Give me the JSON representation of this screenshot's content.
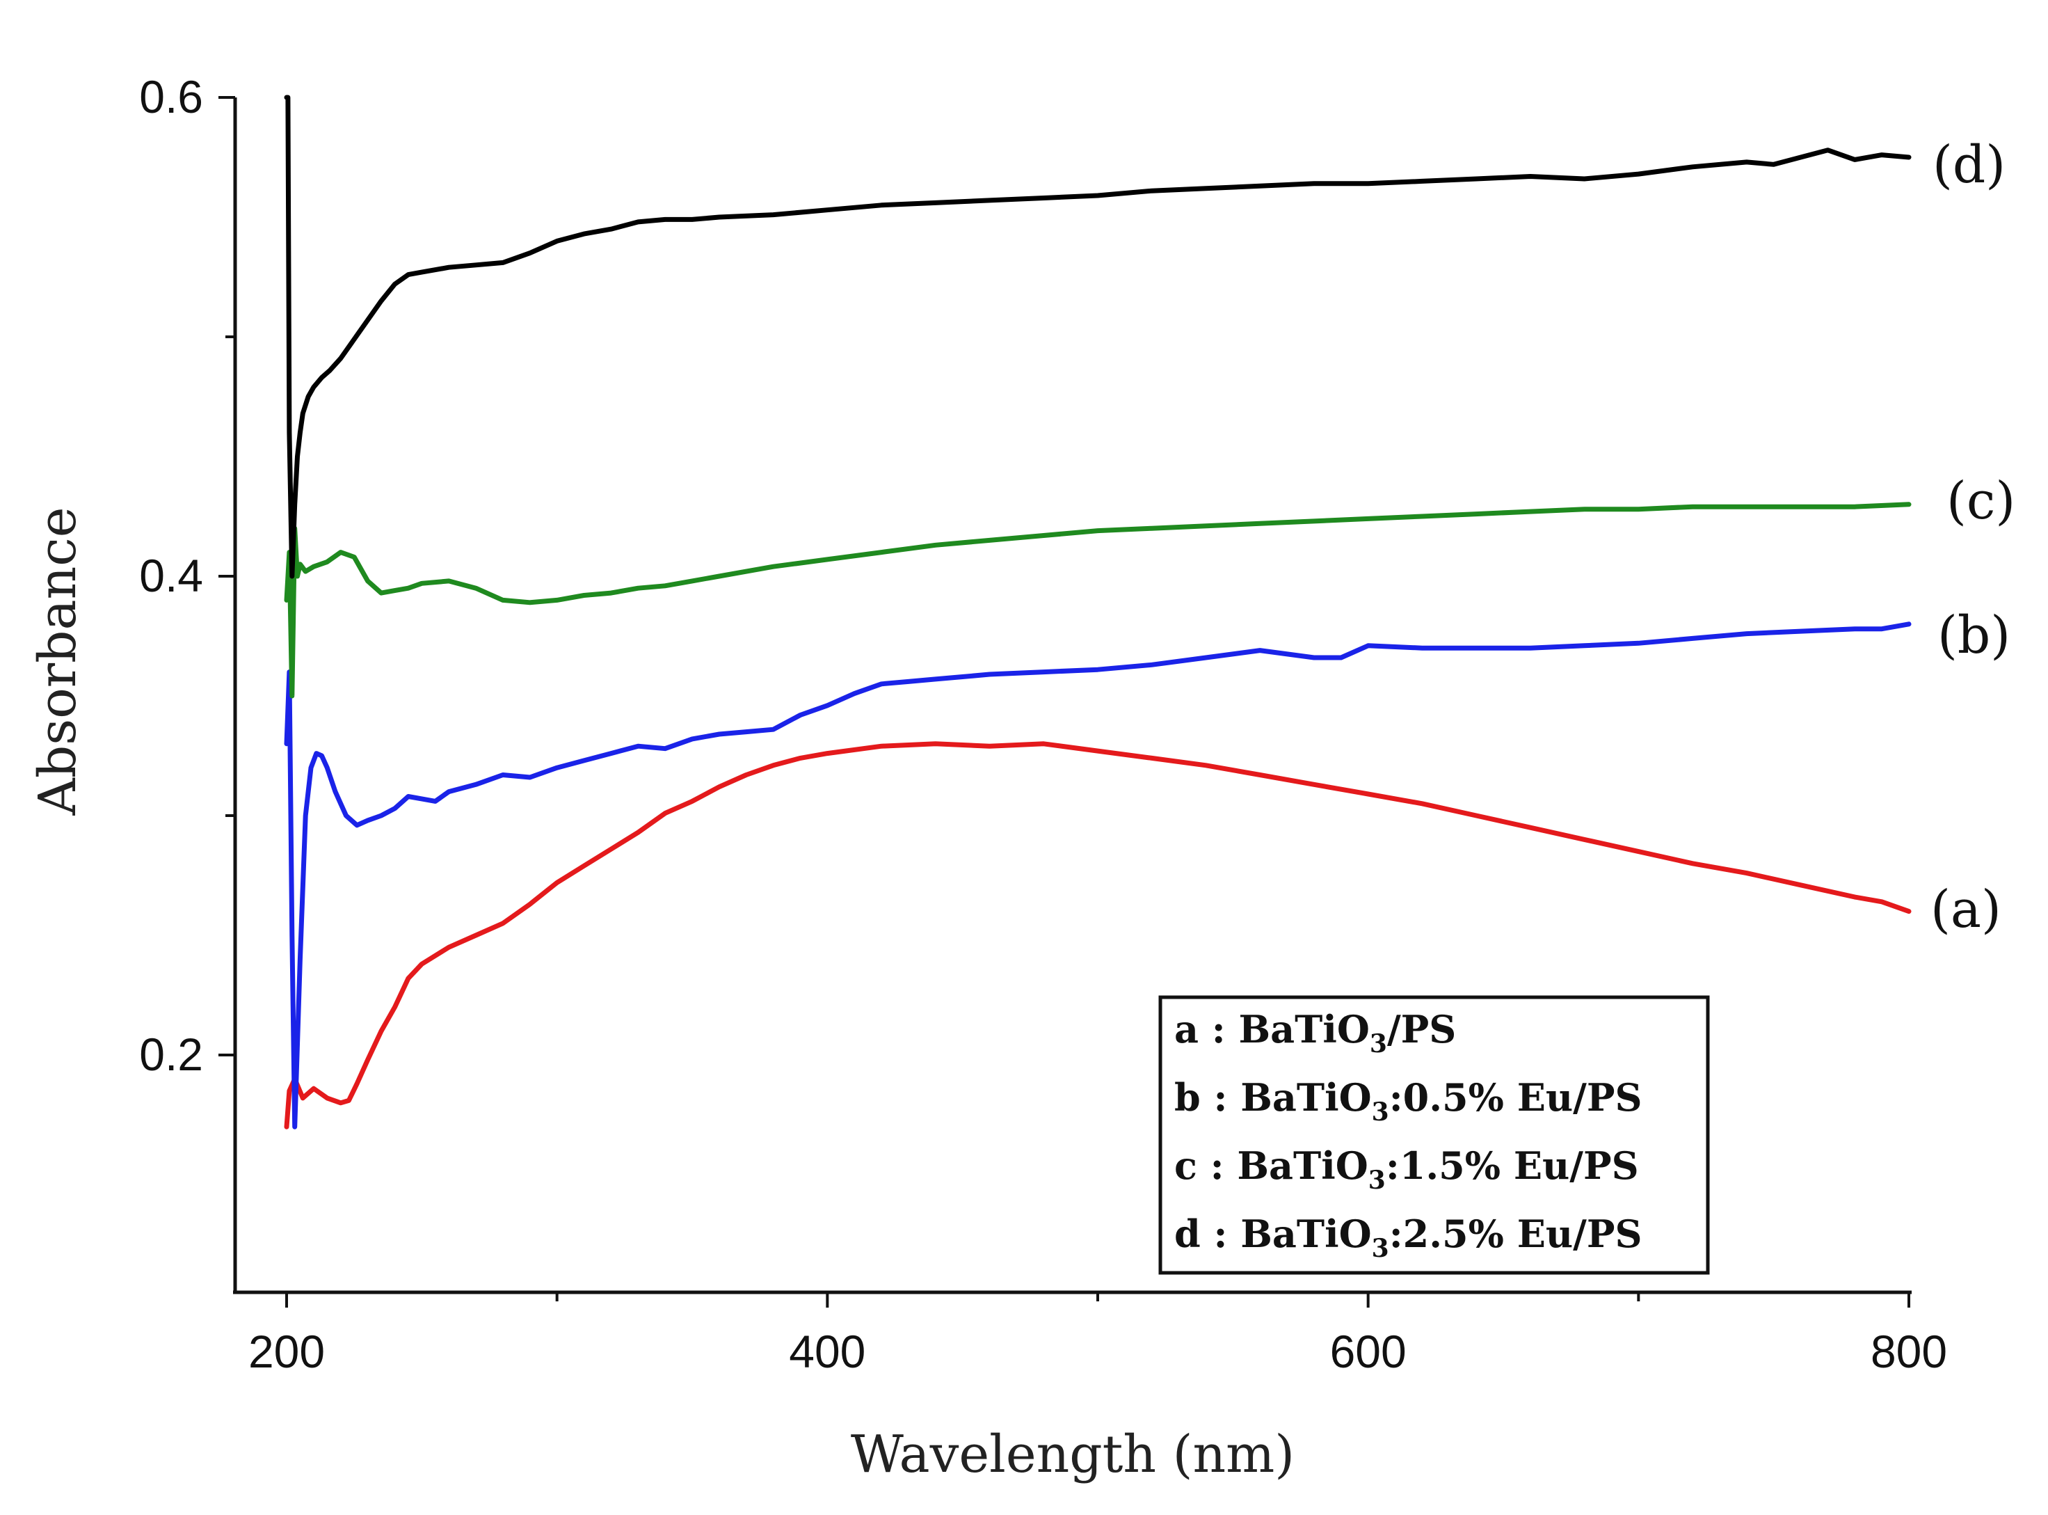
{
  "chart_data": {
    "type": "line",
    "title": "",
    "xlabel": "Wavelength (nm)",
    "ylabel": "Absorbance",
    "xlim": [
      190,
      800
    ],
    "ylim": [
      0.1,
      0.6
    ],
    "xticks": [
      200,
      400,
      600,
      800
    ],
    "xtick_labels": [
      "200",
      "400",
      "600",
      "800"
    ],
    "yticks": [
      0.2,
      0.4,
      0.6
    ],
    "ytick_labels": [
      "0.2",
      "0.4",
      "0.6"
    ],
    "grid": false,
    "legend_position": "bottom-right",
    "series": [
      {
        "name": "a",
        "tag": "(a)",
        "legend_prefix": "a : BaTiO",
        "legend_sub": "3",
        "legend_suffix": "/PS",
        "color": "#e41a1c",
        "x": [
          200,
          201,
          203,
          206,
          210,
          215,
          220,
          223,
          226,
          230,
          235,
          240,
          245,
          250,
          260,
          270,
          280,
          290,
          300,
          310,
          320,
          330,
          340,
          350,
          360,
          370,
          380,
          390,
          400,
          420,
          440,
          460,
          480,
          500,
          520,
          540,
          560,
          580,
          600,
          620,
          640,
          660,
          680,
          700,
          720,
          740,
          760,
          780,
          790,
          800
        ],
        "y": [
          0.17,
          0.185,
          0.19,
          0.182,
          0.186,
          0.182,
          0.18,
          0.181,
          0.188,
          0.198,
          0.21,
          0.22,
          0.232,
          0.238,
          0.245,
          0.25,
          0.255,
          0.263,
          0.272,
          0.279,
          0.286,
          0.293,
          0.301,
          0.306,
          0.312,
          0.317,
          0.321,
          0.324,
          0.326,
          0.329,
          0.33,
          0.329,
          0.33,
          0.327,
          0.324,
          0.321,
          0.317,
          0.313,
          0.309,
          0.305,
          0.3,
          0.295,
          0.29,
          0.285,
          0.28,
          0.276,
          0.271,
          0.266,
          0.264,
          0.26
        ]
      },
      {
        "name": "b",
        "tag": "(b)",
        "legend_prefix": "b : BaTiO",
        "legend_sub": "3",
        "legend_suffix": ":0.5% Eu/PS",
        "color": "#1a23e8",
        "x": [
          200,
          201,
          202,
          203,
          205,
          207,
          209,
          211,
          213,
          215,
          218,
          222,
          226,
          230,
          235,
          240,
          245,
          250,
          255,
          260,
          270,
          280,
          290,
          300,
          310,
          320,
          330,
          340,
          350,
          360,
          370,
          380,
          390,
          400,
          410,
          420,
          430,
          440,
          450,
          460,
          480,
          500,
          520,
          540,
          560,
          580,
          590,
          600,
          620,
          640,
          660,
          680,
          700,
          720,
          740,
          760,
          780,
          790,
          800
        ],
        "y": [
          0.33,
          0.36,
          0.25,
          0.17,
          0.24,
          0.3,
          0.32,
          0.326,
          0.325,
          0.32,
          0.31,
          0.3,
          0.296,
          0.298,
          0.3,
          0.303,
          0.308,
          0.307,
          0.306,
          0.31,
          0.313,
          0.317,
          0.316,
          0.32,
          0.323,
          0.326,
          0.329,
          0.328,
          0.332,
          0.334,
          0.335,
          0.336,
          0.342,
          0.346,
          0.351,
          0.355,
          0.356,
          0.357,
          0.358,
          0.359,
          0.36,
          0.361,
          0.363,
          0.366,
          0.369,
          0.366,
          0.366,
          0.371,
          0.37,
          0.37,
          0.37,
          0.371,
          0.372,
          0.374,
          0.376,
          0.377,
          0.378,
          0.378,
          0.38
        ]
      },
      {
        "name": "c",
        "tag": "(c)",
        "legend_prefix": "c  : BaTiO",
        "legend_sub": "3",
        "legend_suffix": ":1.5% Eu/PS",
        "color": "#1f8a1f",
        "x": [
          200,
          201,
          202,
          203,
          204,
          205,
          207,
          210,
          215,
          220,
          225,
          230,
          235,
          240,
          245,
          250,
          260,
          270,
          280,
          290,
          300,
          310,
          320,
          330,
          340,
          350,
          360,
          380,
          400,
          420,
          440,
          460,
          480,
          500,
          520,
          540,
          560,
          580,
          600,
          620,
          640,
          660,
          680,
          700,
          720,
          740,
          760,
          780,
          800
        ],
        "y": [
          0.39,
          0.41,
          0.35,
          0.42,
          0.4,
          0.405,
          0.402,
          0.404,
          0.406,
          0.41,
          0.408,
          0.398,
          0.393,
          0.394,
          0.395,
          0.397,
          0.398,
          0.395,
          0.39,
          0.389,
          0.39,
          0.392,
          0.393,
          0.395,
          0.396,
          0.398,
          0.4,
          0.404,
          0.407,
          0.41,
          0.413,
          0.415,
          0.417,
          0.419,
          0.42,
          0.421,
          0.422,
          0.423,
          0.424,
          0.425,
          0.426,
          0.427,
          0.428,
          0.428,
          0.429,
          0.429,
          0.429,
          0.429,
          0.43
        ]
      },
      {
        "name": "d",
        "tag": "(d)",
        "legend_prefix": "d  : BaTiO",
        "legend_sub": "3",
        "legend_suffix": ":2.5% Eu/PS",
        "color": "#000000",
        "x": [
          200,
          200.5,
          201,
          202,
          203,
          204,
          205,
          206,
          208,
          210,
          213,
          216,
          220,
          225,
          230,
          235,
          240,
          245,
          250,
          260,
          270,
          280,
          290,
          300,
          310,
          320,
          330,
          340,
          350,
          360,
          380,
          400,
          420,
          440,
          460,
          480,
          500,
          520,
          540,
          560,
          580,
          600,
          620,
          640,
          660,
          680,
          700,
          720,
          740,
          750,
          760,
          770,
          780,
          790,
          800
        ],
        "y": [
          0.6,
          0.6,
          0.46,
          0.4,
          0.43,
          0.45,
          0.46,
          0.468,
          0.475,
          0.479,
          0.483,
          0.486,
          0.491,
          0.499,
          0.507,
          0.515,
          0.522,
          0.526,
          0.527,
          0.529,
          0.53,
          0.531,
          0.535,
          0.54,
          0.543,
          0.545,
          0.548,
          0.549,
          0.549,
          0.55,
          0.551,
          0.553,
          0.555,
          0.556,
          0.557,
          0.558,
          0.559,
          0.561,
          0.562,
          0.563,
          0.564,
          0.564,
          0.565,
          0.566,
          0.567,
          0.566,
          0.568,
          0.571,
          0.573,
          0.572,
          0.575,
          0.578,
          0.574,
          0.576,
          0.575
        ]
      }
    ]
  }
}
